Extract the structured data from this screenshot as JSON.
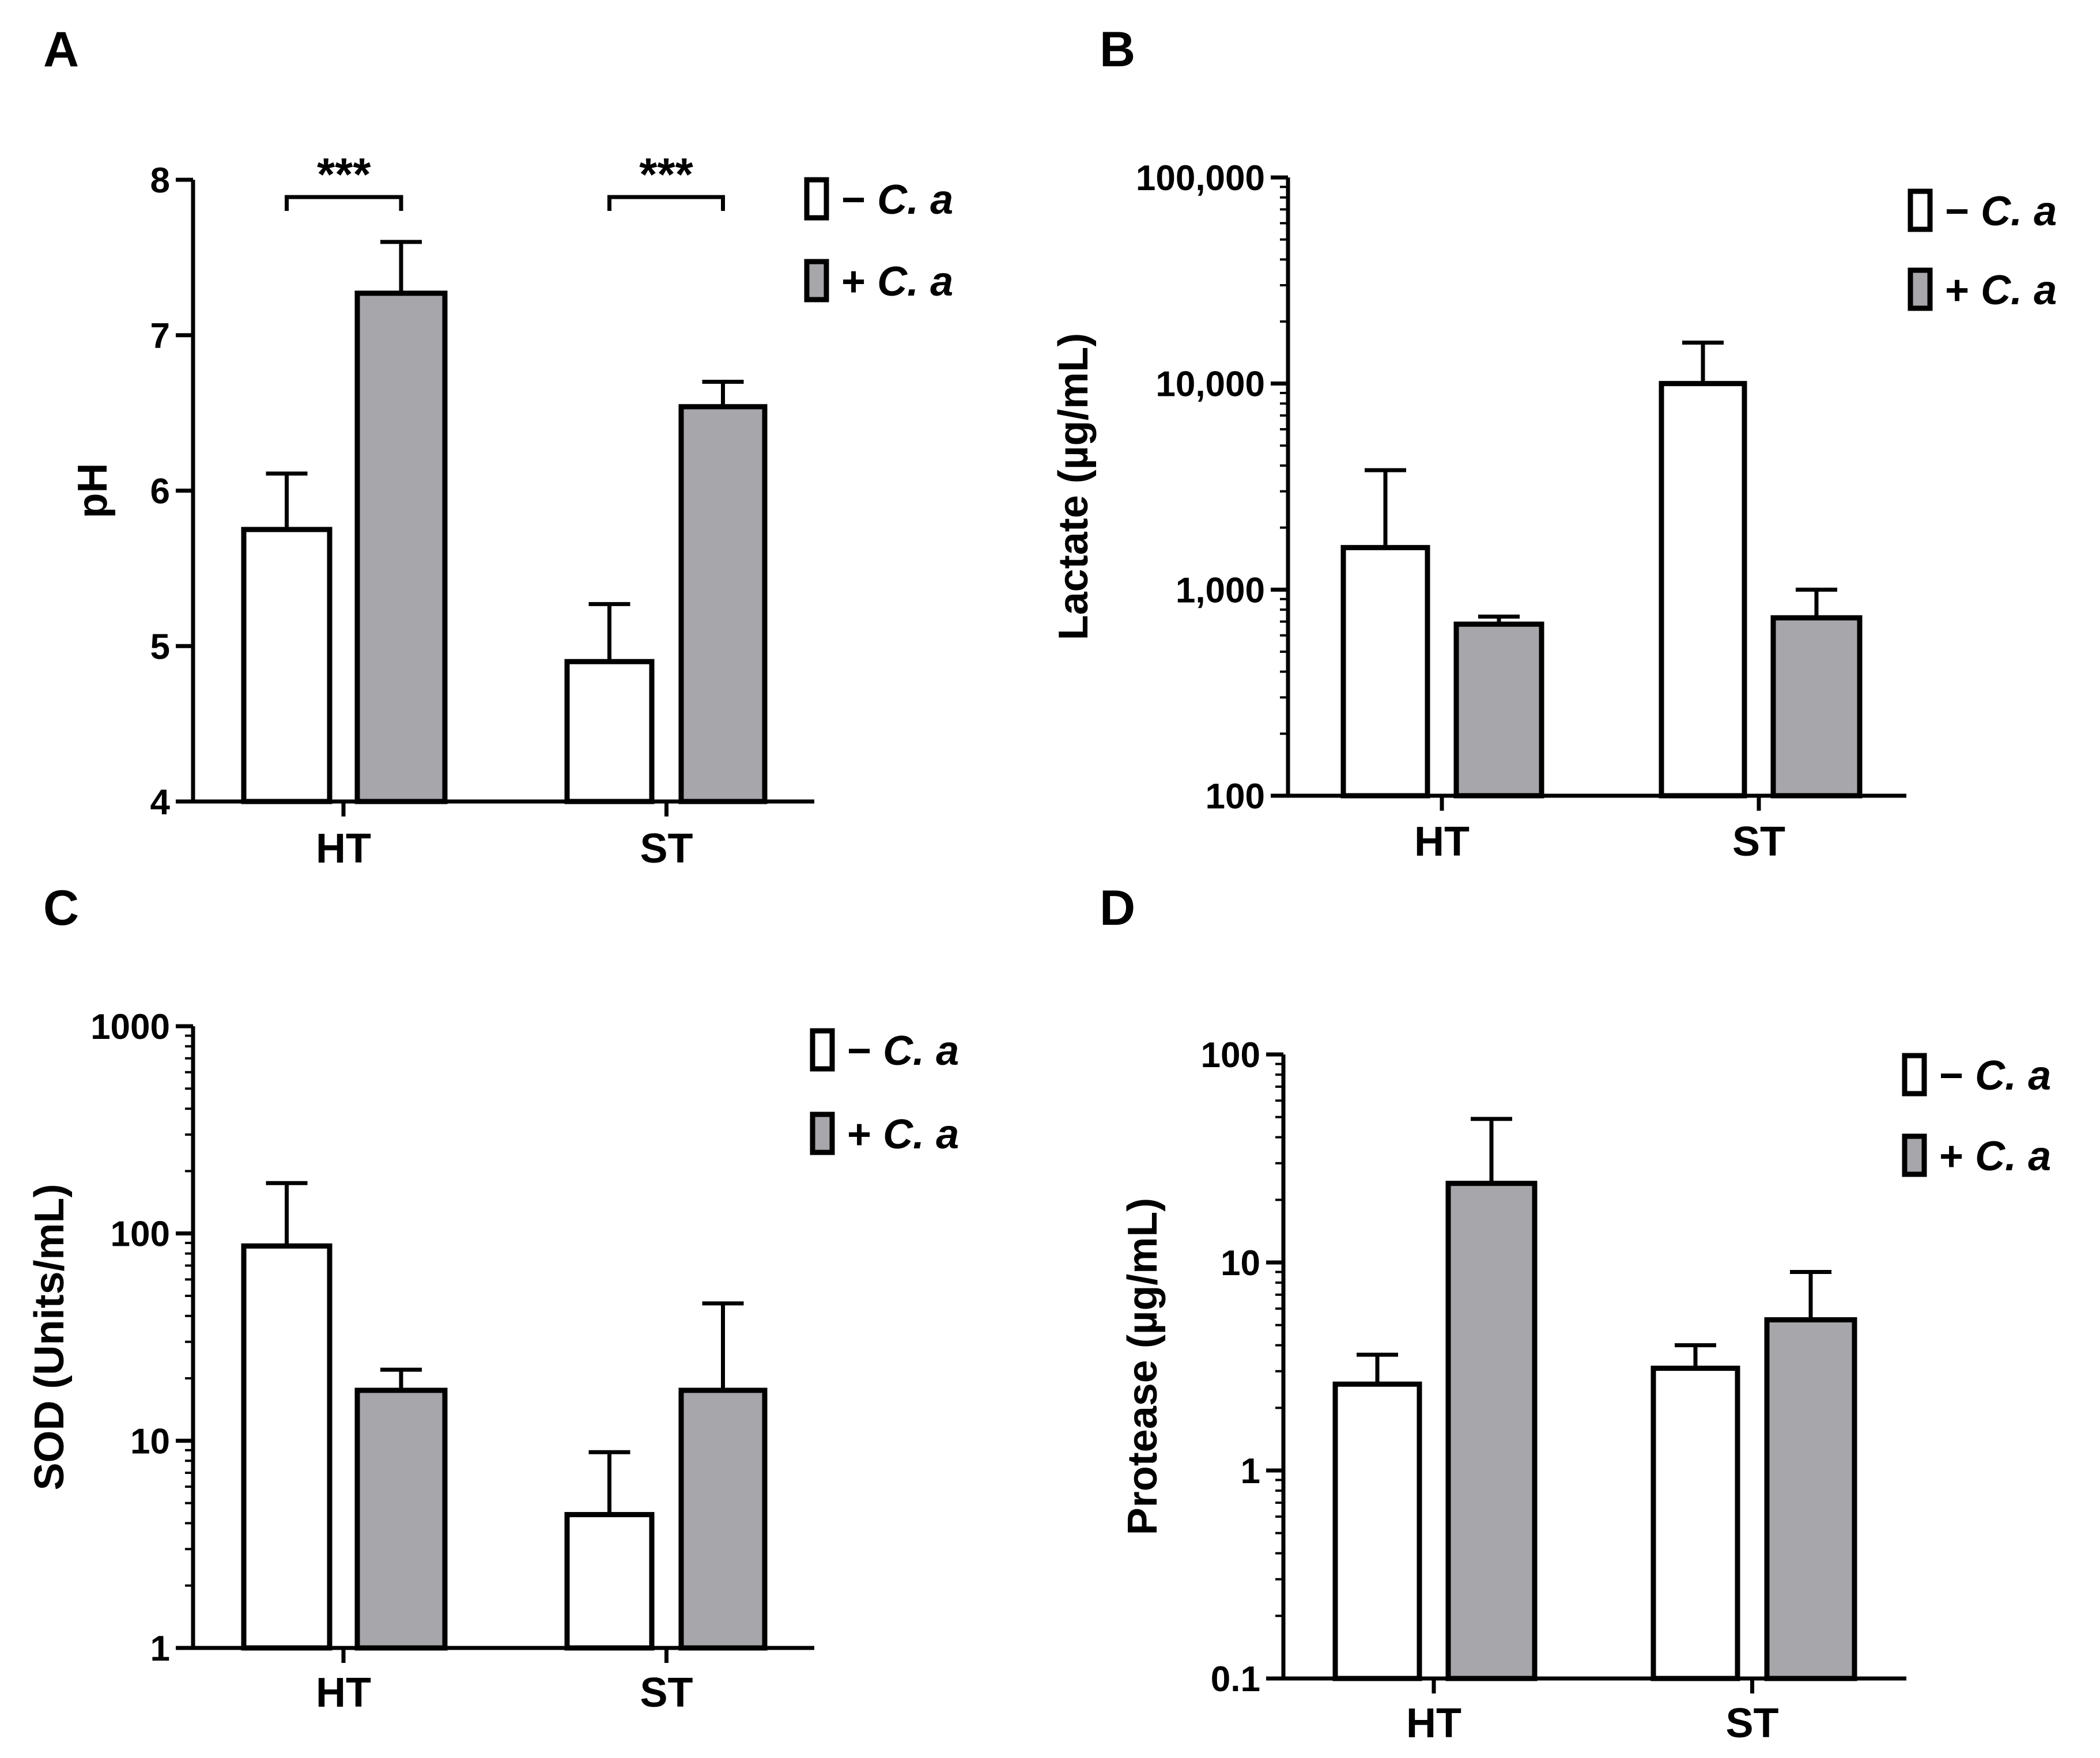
{
  "legend": {
    "minus_label": "− C. a",
    "plus_label": "+ C. a",
    "minus_sign": "−",
    "plus_sign": "+",
    "species": "C. a"
  },
  "colors": {
    "minus_fill": "#ffffff",
    "plus_fill": "#a6a6ab",
    "stroke": "#000000"
  },
  "chart_data": [
    {
      "panel": "A",
      "type": "bar",
      "scale": "linear",
      "ylabel": "pH",
      "ylim": [
        4,
        8
      ],
      "yticks": [
        4,
        5,
        6,
        7,
        8
      ],
      "ytick_labels": [
        "4",
        "5",
        "6",
        "7",
        "8"
      ],
      "categories": [
        "HT",
        "ST"
      ],
      "series": [
        {
          "name": "− C. a",
          "values": [
            5.75,
            4.9
          ],
          "errors": [
            0.36,
            0.37
          ]
        },
        {
          "name": "+ C. a",
          "values": [
            7.27,
            6.54
          ],
          "errors": [
            0.33,
            0.16
          ]
        }
      ],
      "significance": [
        "***",
        "***"
      ]
    },
    {
      "panel": "B",
      "type": "bar",
      "scale": "log",
      "ylabel": "Lactate (µg/mL)",
      "ylim": [
        100,
        100000
      ],
      "yticks": [
        100,
        1000,
        10000,
        100000
      ],
      "ytick_labels": [
        "100",
        "1,000",
        "10,000",
        "100,000"
      ],
      "categories": [
        "HT",
        "ST"
      ],
      "series": [
        {
          "name": "− C. a",
          "values": [
            1600,
            10000
          ],
          "error_tops": [
            3800,
            15800
          ]
        },
        {
          "name": "+ C. a",
          "values": [
            680,
            730
          ],
          "error_tops": [
            740,
            1000
          ]
        }
      ]
    },
    {
      "panel": "C",
      "type": "bar",
      "scale": "log",
      "ylabel": "SOD (Units/mL)",
      "ylim": [
        1,
        1000
      ],
      "yticks": [
        1,
        10,
        100,
        1000
      ],
      "ytick_labels": [
        "1",
        "10",
        "100",
        "1000"
      ],
      "categories": [
        "HT",
        "ST"
      ],
      "series": [
        {
          "name": "− C. a",
          "values": [
            87,
            4.4
          ],
          "error_tops": [
            175,
            8.8
          ]
        },
        {
          "name": "+ C. a",
          "values": [
            17.5,
            17.5
          ],
          "error_tops": [
            22,
            46
          ]
        }
      ]
    },
    {
      "panel": "D",
      "type": "bar",
      "scale": "log",
      "ylabel": "Protease (µg/mL)",
      "ylim": [
        0.1,
        100
      ],
      "yticks": [
        0.1,
        1,
        10,
        100
      ],
      "ytick_labels": [
        "0.1",
        "1",
        "10",
        "100"
      ],
      "categories": [
        "HT",
        "ST"
      ],
      "series": [
        {
          "name": "− C. a",
          "values": [
            2.6,
            3.1
          ],
          "error_tops": [
            3.6,
            4.0
          ]
        },
        {
          "name": "+ C. a",
          "values": [
            24,
            5.3
          ],
          "error_tops": [
            49,
            9.0
          ]
        }
      ]
    }
  ]
}
